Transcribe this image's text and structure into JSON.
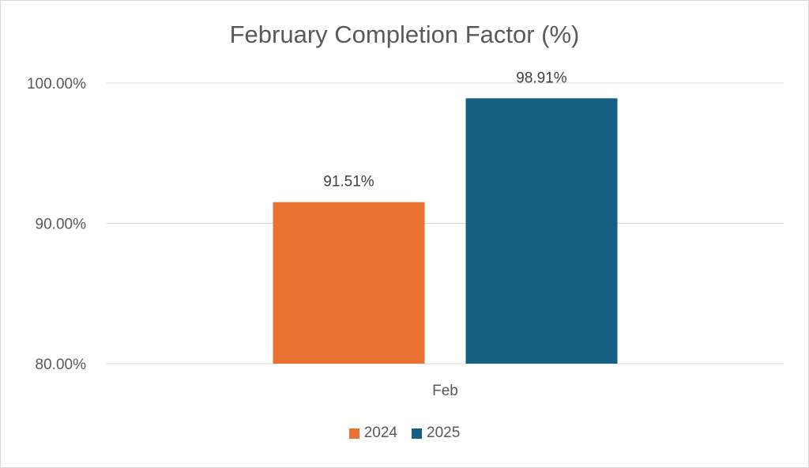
{
  "chart_data": {
    "type": "bar",
    "title": "February Completion Factor (%)",
    "categories": [
      "Feb"
    ],
    "series": [
      {
        "name": "2024",
        "values": [
          91.51
        ],
        "label": "91.51%",
        "color": "#E97132"
      },
      {
        "name": "2025",
        "values": [
          98.91
        ],
        "label": "98.91%",
        "color": "#156082"
      }
    ],
    "ylim": [
      80,
      100
    ],
    "yticks": [
      {
        "value": 80,
        "label": "80.00%"
      },
      {
        "value": 90,
        "label": "90.00%"
      },
      {
        "value": 100,
        "label": "100.00%"
      }
    ],
    "grid": true,
    "legend_position": "bottom"
  }
}
